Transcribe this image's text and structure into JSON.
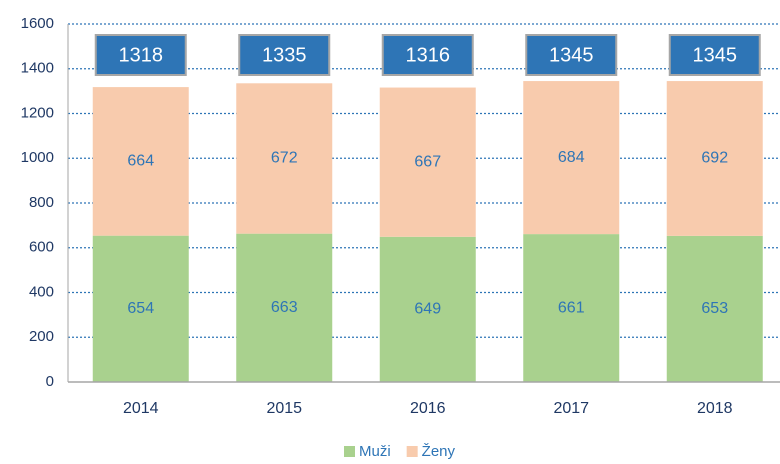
{
  "chart_data": {
    "type": "stacked_bar",
    "categories": [
      "2014",
      "2015",
      "2016",
      "2017",
      "2018"
    ],
    "series": [
      {
        "name": "Muži",
        "color": "#a9d18e",
        "values": [
          654,
          663,
          649,
          661,
          653
        ]
      },
      {
        "name": "Ženy",
        "color": "#f8cbad",
        "values": [
          664,
          672,
          667,
          684,
          692
        ]
      }
    ],
    "totals": [
      1318,
      1335,
      1316,
      1345,
      1345
    ],
    "ylim": [
      0,
      1600
    ],
    "yticks": [
      0,
      200,
      400,
      600,
      800,
      1000,
      1200,
      1400,
      1600
    ],
    "grid": true,
    "legend": "bottom"
  }
}
